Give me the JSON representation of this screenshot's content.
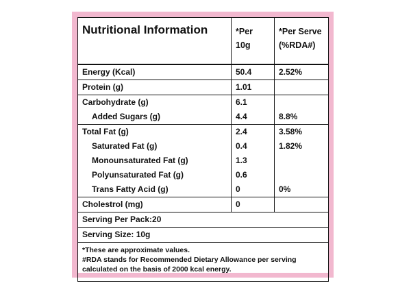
{
  "header": {
    "title": "Nutritional Information",
    "per_10g": "*Per 10g",
    "per_serve": [
      "*Per Serve",
      "(%RDA#)"
    ]
  },
  "groups": [
    [
      {
        "label": "Energy (Kcal)",
        "per_10g": "50.4",
        "per_serve": "2.52%"
      }
    ],
    [
      {
        "label": "Protein (g)",
        "per_10g": "1.01"
      }
    ],
    [
      {
        "label": "Carbohydrate (g)",
        "per_10g": "6.1"
      },
      {
        "label": "Added Sugars (g)",
        "per_10g": "4.4",
        "per_serve": "8.8%"
      }
    ],
    [
      {
        "label": "Total Fat (g)",
        "per_10g": "2.4",
        "per_serve": "3.58%"
      },
      {
        "label": "Saturated Fat (g)",
        "per_10g": "0.4",
        "per_serve": "1.82%"
      },
      {
        "label": "Monounsaturated Fat (g)",
        "per_10g": "1.3"
      },
      {
        "label": "Polyunsaturated Fat (g)",
        "per_10g": "0.6"
      },
      {
        "label": "Trans Fatty Acid (g)",
        "per_10g": "0",
        "per_serve": "0%"
      }
    ],
    [
      {
        "label": "Cholestrol (mg)",
        "per_10g": "0"
      }
    ]
  ],
  "serving_per_pack": "Serving Per Pack:20",
  "serving_size": "Serving Size: 10g",
  "notes": [
    "*These are approximate values.",
    "#RDA stands for Recommended Dietary Allowance per serving",
    "calculated on the basis of 2000 kcal energy."
  ]
}
